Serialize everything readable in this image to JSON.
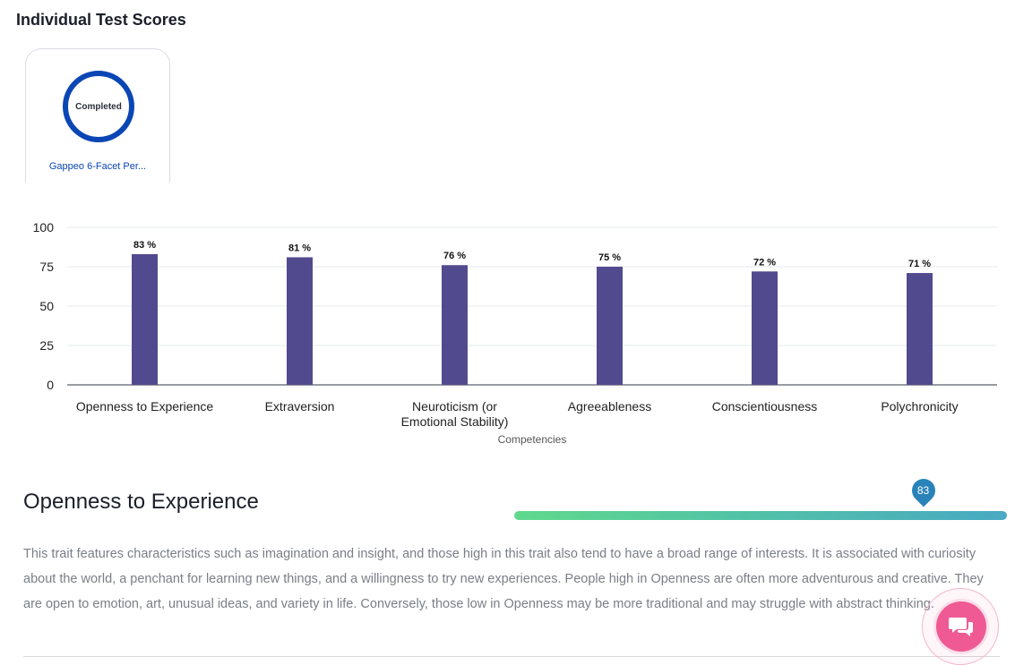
{
  "page": {
    "title": "Individual Test Scores"
  },
  "test_card": {
    "status": "Completed",
    "name": "Gappeo 6-Facet Per..."
  },
  "chart_data": {
    "type": "bar",
    "categories": [
      [
        "Openness to Experience"
      ],
      [
        "Extraversion"
      ],
      [
        "Neuroticism (or",
        "Emotional Stability)"
      ],
      [
        "Agreeableness"
      ],
      [
        "Conscientiousness"
      ],
      [
        "Polychronicity"
      ]
    ],
    "values": [
      83,
      81,
      76,
      75,
      72,
      71
    ],
    "data_labels": [
      "83 %",
      "81 %",
      "76 %",
      "75 %",
      "72 %",
      "71 %"
    ],
    "xlabel": "Competencies",
    "ylabel": "",
    "ylim": [
      0,
      100
    ],
    "yticks": [
      0,
      25,
      50,
      75,
      100
    ],
    "grid": true,
    "bar_color": "#524a8e"
  },
  "section": {
    "title": "Openness to Experience",
    "score": 83,
    "score_label": "83",
    "description": "This trait features characteristics such as imagination and insight, and those high in this trait also tend to have a broad range of interests. It is associated with curiosity about the world, a penchant for learning new things, and a willingness to try new experiences. People high in Openness are often more adventurous and creative. They are open to emotion, art, unusual ideas, and variety in life. Conversely, those low in Openness may be more traditional and may struggle with abstract thinking."
  },
  "chat": {
    "icon": "chat-bubbles-icon",
    "color": "#ef5a94"
  }
}
